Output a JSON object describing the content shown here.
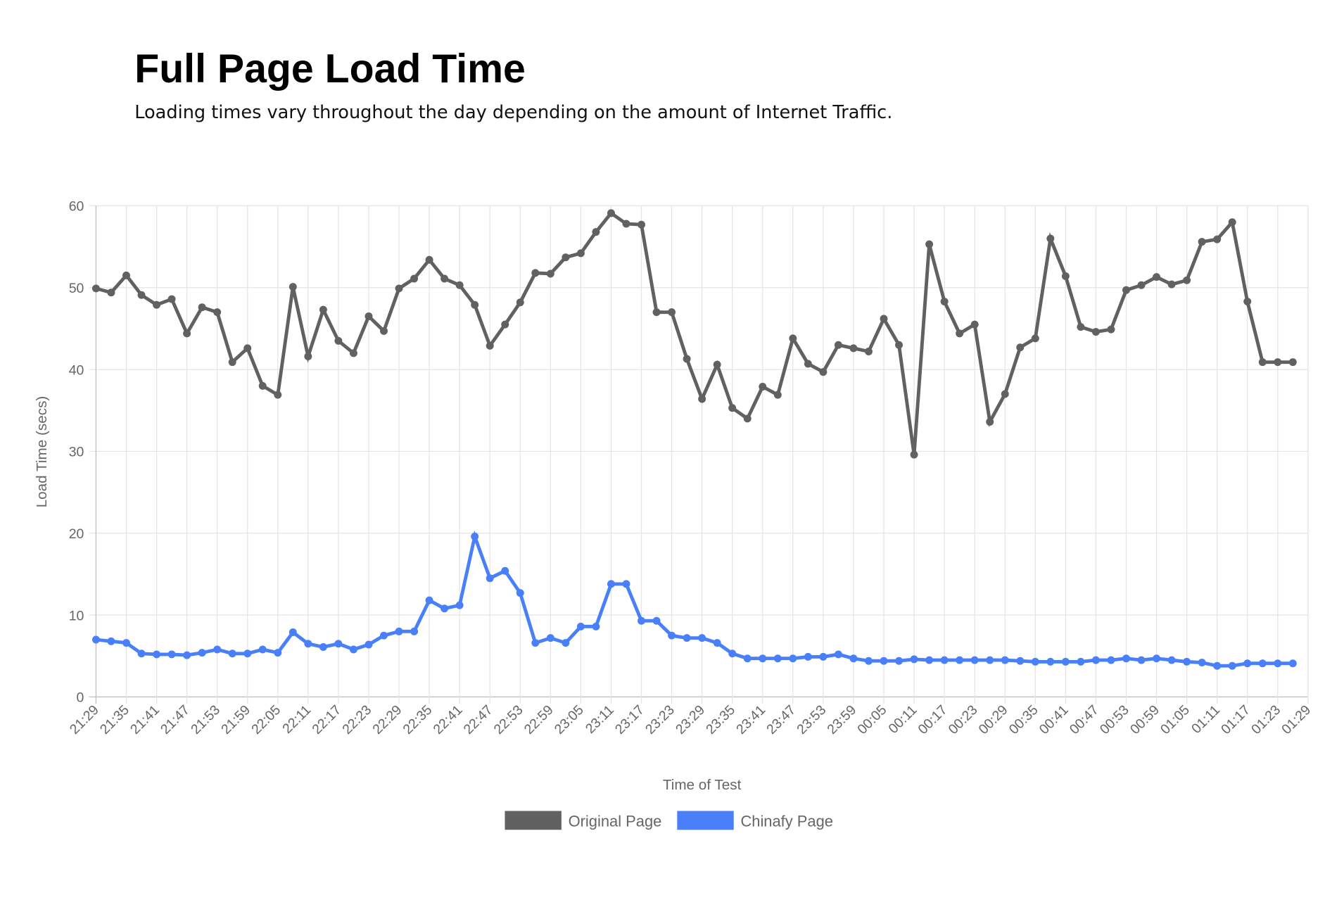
{
  "header": {
    "title": "Full Page Load Time",
    "subtitle": "Loading times vary throughout the day depending on the amount of Internet Traffic."
  },
  "chart_data": {
    "type": "line",
    "title": "",
    "xlabel": "Time of Test",
    "ylabel": "Load Time (secs)",
    "ylim": [
      0,
      60
    ],
    "yticks": [
      0,
      10,
      20,
      30,
      40,
      50,
      60
    ],
    "grid": true,
    "legend_position": "bottom",
    "x_tick_labels": [
      "21:29",
      "21:35",
      "21:41",
      "21:47",
      "21:53",
      "21:59",
      "22:05",
      "22:11",
      "22:17",
      "22:23",
      "22:29",
      "22:35",
      "22:41",
      "22:47",
      "22:53",
      "22:59",
      "23:05",
      "23:11",
      "23:17",
      "23:23",
      "23:29",
      "23:35",
      "23:41",
      "23:47",
      "23:53",
      "23:59",
      "00:05",
      "00:11",
      "00:17",
      "00:23",
      "00:29",
      "00:35",
      "00:41",
      "00:47",
      "00:53",
      "00:59",
      "01:05",
      "01:11",
      "01:17",
      "01:23",
      "01:29"
    ],
    "series": [
      {
        "name": "Original Page",
        "color": "#616161",
        "values": [
          49.9,
          49.4,
          51.5,
          49.1,
          47.9,
          48.6,
          44.4,
          47.6,
          47.0,
          40.9,
          42.6,
          38.0,
          36.9,
          50.1,
          41.6,
          47.3,
          43.5,
          42.0,
          46.5,
          44.7,
          49.9,
          51.1,
          53.4,
          51.1,
          50.3,
          47.9,
          42.9,
          45.5,
          48.2,
          51.8,
          51.7,
          53.7,
          54.2,
          56.8,
          59.1,
          57.8,
          57.7,
          47.0,
          47.0,
          41.3,
          36.4,
          40.6,
          35.3,
          34.0,
          37.9,
          36.9,
          43.8,
          40.7,
          39.7,
          43.0,
          42.6,
          42.2,
          46.2,
          43.0,
          29.6,
          55.3,
          48.3,
          44.4,
          45.5,
          33.6,
          37.0,
          42.7,
          43.8,
          56.0,
          51.4,
          45.2,
          44.6,
          44.9,
          49.7,
          50.3,
          51.3,
          50.4,
          50.9,
          55.6,
          55.9,
          58.0,
          48.3,
          40.9,
          40.9,
          40.9
        ]
      },
      {
        "name": "Chinafy Page",
        "color": "#4a7ffa",
        "values": [
          7.0,
          6.8,
          6.6,
          5.3,
          5.2,
          5.2,
          5.1,
          5.4,
          5.8,
          5.3,
          5.3,
          5.8,
          5.4,
          7.9,
          6.5,
          6.1,
          6.5,
          5.8,
          6.4,
          7.5,
          8.0,
          8.0,
          11.8,
          10.8,
          11.2,
          19.6,
          14.5,
          15.4,
          12.7,
          6.6,
          7.2,
          6.6,
          8.6,
          8.6,
          13.8,
          13.8,
          9.3,
          9.3,
          7.5,
          7.2,
          7.2,
          6.6,
          5.3,
          4.7,
          4.7,
          4.7,
          4.7,
          4.9,
          4.9,
          5.2,
          4.7,
          4.4,
          4.4,
          4.4,
          4.6,
          4.5,
          4.5,
          4.5,
          4.5,
          4.5,
          4.5,
          4.4,
          4.3,
          4.3,
          4.3,
          4.3,
          4.5,
          4.5,
          4.7,
          4.5,
          4.7,
          4.5,
          4.3,
          4.2,
          3.8,
          3.8,
          4.1,
          4.1,
          4.1,
          4.1
        ]
      }
    ]
  }
}
